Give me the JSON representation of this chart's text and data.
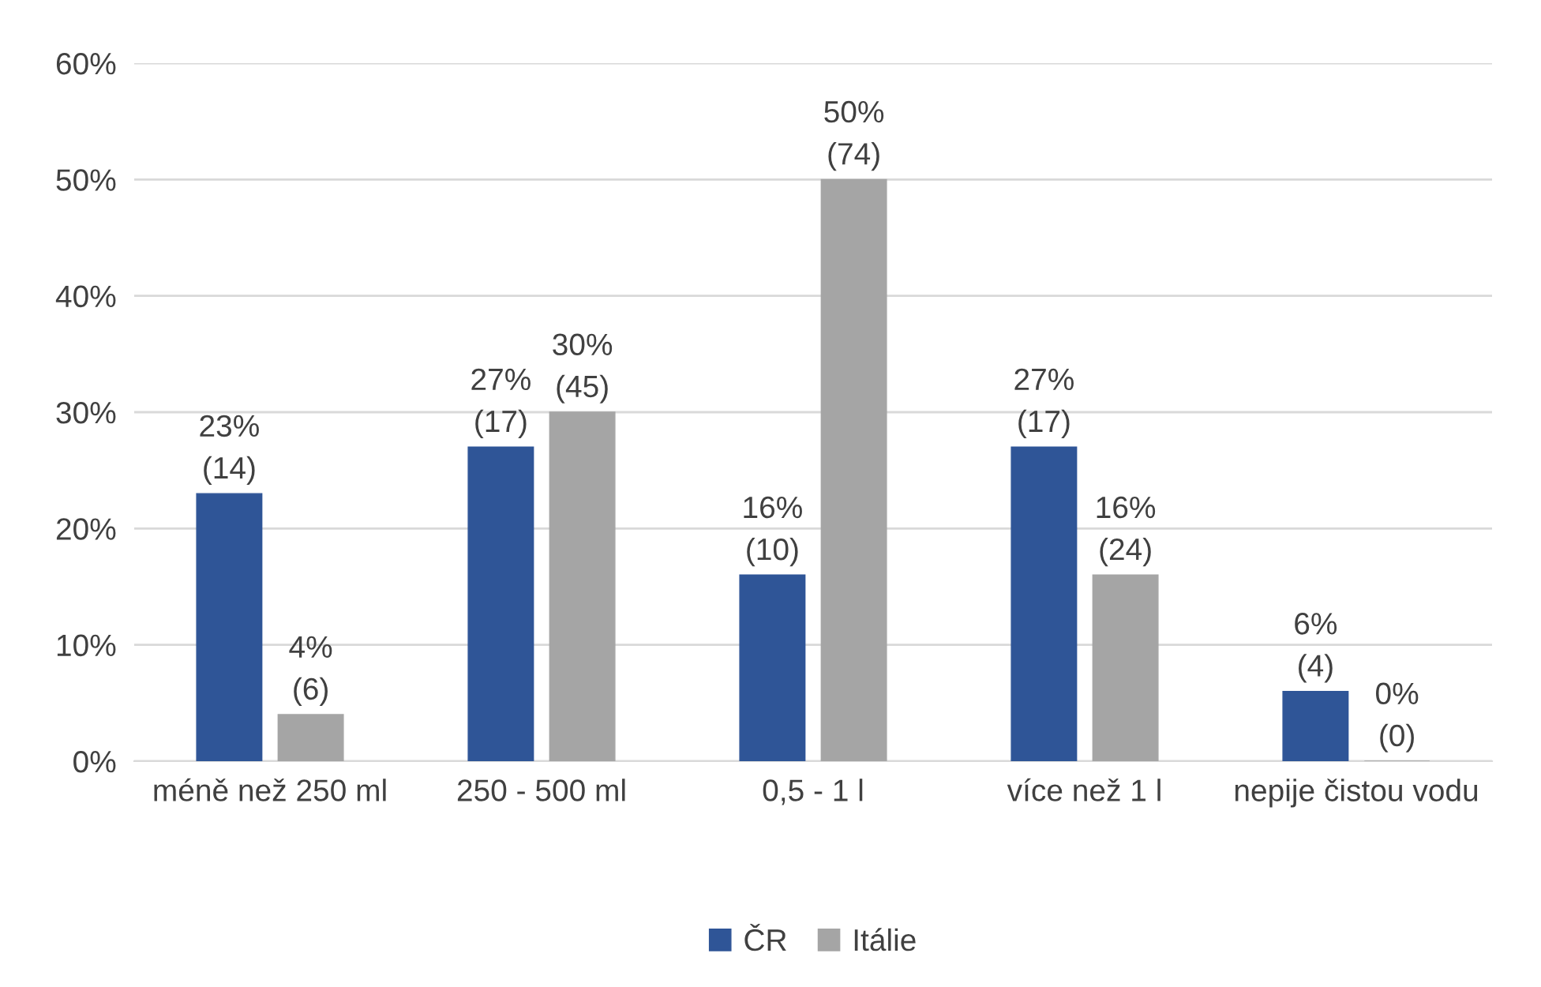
{
  "chart_data": {
    "type": "bar",
    "categories": [
      "méně než 250 ml",
      "250 - 500 ml",
      "0,5 - 1 l",
      "více než 1 l",
      "nepije čistou vodu"
    ],
    "series": [
      {
        "name": "ČR",
        "color": "#2f5597",
        "values": [
          23,
          27,
          16,
          27,
          6
        ],
        "value_labels": [
          "23%\n(14)",
          "27%\n(17)",
          "16%\n(10)",
          "27%\n(17)",
          "6%\n(4)"
        ]
      },
      {
        "name": "Itálie",
        "color": "#a5a5a5",
        "values": [
          4,
          30,
          50,
          16,
          0
        ],
        "value_labels": [
          "4%\n(6)",
          "30%\n(45)",
          "50%\n(74)",
          "16%\n(24)",
          "0%\n(0)"
        ]
      }
    ],
    "ylim": [
      0,
      60
    ],
    "yticks": [
      {
        "value": 0,
        "label": "0%"
      },
      {
        "value": 10,
        "label": "10%"
      },
      {
        "value": 20,
        "label": "20%"
      },
      {
        "value": 30,
        "label": "30%"
      },
      {
        "value": 40,
        "label": "40%"
      },
      {
        "value": 50,
        "label": "50%"
      },
      {
        "value": 60,
        "label": "60%"
      }
    ],
    "grid": "y",
    "legend": "bottom"
  }
}
